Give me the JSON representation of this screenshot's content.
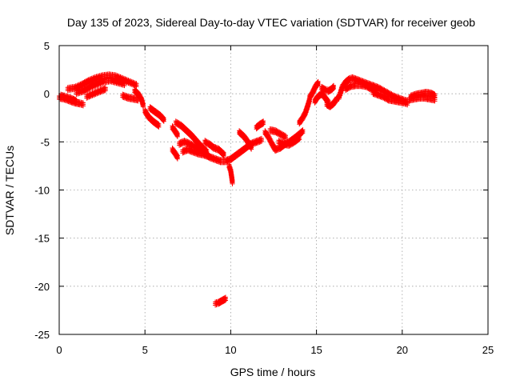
{
  "chart_data": {
    "type": "scatter",
    "title": "Day 135 of 2023, Sidereal Day-to-day VTEC variation (SDTVAR) for receiver geob",
    "xlabel": "GPS time / hours",
    "ylabel": "SDTVAR / TECUs",
    "xlim": [
      0,
      25
    ],
    "ylim": [
      -25,
      5
    ],
    "xticks": [
      0,
      5,
      10,
      15,
      20,
      25
    ],
    "yticks": [
      5,
      0,
      -5,
      -10,
      -15,
      -20,
      -25
    ],
    "grid": true,
    "marker": "plus",
    "color": "#ff0000",
    "series": [
      {
        "name": "SDTVAR",
        "segments": [
          [
            [
              0.0,
              -0.4
            ],
            [
              0.3,
              -0.5
            ],
            [
              0.6,
              -0.7
            ],
            [
              0.9,
              -0.9
            ],
            [
              1.2,
              -1.0
            ],
            [
              1.4,
              -1.1
            ]
          ],
          [
            [
              0.1,
              -0.2
            ],
            [
              0.3,
              -0.3
            ],
            [
              0.5,
              -0.4
            ],
            [
              0.8,
              -0.6
            ],
            [
              1.0,
              -0.8
            ]
          ],
          [
            [
              0.5,
              0.5
            ],
            [
              0.9,
              0.6
            ],
            [
              1.3,
              0.9
            ],
            [
              1.7,
              1.3
            ],
            [
              2.1,
              1.6
            ],
            [
              2.5,
              1.8
            ],
            [
              2.9,
              1.9
            ],
            [
              3.3,
              1.8
            ],
            [
              3.7,
              1.5
            ],
            [
              4.1,
              1.2
            ],
            [
              4.5,
              0.9
            ]
          ],
          [
            [
              1.0,
              0.1
            ],
            [
              1.4,
              0.3
            ],
            [
              1.8,
              0.7
            ],
            [
              2.2,
              1.0
            ],
            [
              2.6,
              1.3
            ],
            [
              3.0,
              1.4
            ],
            [
              3.4,
              1.2
            ],
            [
              3.8,
              1.0
            ]
          ],
          [
            [
              1.6,
              -0.3
            ],
            [
              2.0,
              0.0
            ],
            [
              2.4,
              0.3
            ],
            [
              2.7,
              0.5
            ]
          ],
          [
            [
              3.7,
              -0.2
            ],
            [
              4.0,
              -0.4
            ],
            [
              4.3,
              -0.5
            ],
            [
              4.6,
              -0.6
            ]
          ],
          [
            [
              4.4,
              0.3
            ],
            [
              4.6,
              0.0
            ],
            [
              4.8,
              -0.6
            ],
            [
              4.9,
              -1.2
            ]
          ],
          [
            [
              5.0,
              -1.8
            ],
            [
              5.2,
              -2.4
            ],
            [
              5.5,
              -2.9
            ],
            [
              5.8,
              -3.3
            ]
          ],
          [
            [
              5.3,
              -1.5
            ],
            [
              5.6,
              -1.9
            ],
            [
              5.9,
              -2.3
            ],
            [
              6.1,
              -2.7
            ]
          ],
          [
            [
              6.6,
              -3.5
            ],
            [
              6.8,
              -4.0
            ],
            [
              6.9,
              -4.3
            ]
          ],
          [
            [
              6.8,
              -3.0
            ],
            [
              7.1,
              -3.3
            ],
            [
              7.4,
              -3.8
            ],
            [
              7.7,
              -4.3
            ],
            [
              8.0,
              -4.9
            ],
            [
              8.3,
              -5.5
            ],
            [
              8.6,
              -6.0
            ]
          ],
          [
            [
              6.6,
              -5.8
            ],
            [
              6.8,
              -6.3
            ],
            [
              6.9,
              -6.6
            ]
          ],
          [
            [
              7.0,
              -5.2
            ],
            [
              7.3,
              -5.0
            ],
            [
              7.6,
              -5.2
            ],
            [
              7.9,
              -5.5
            ],
            [
              8.2,
              -5.8
            ],
            [
              8.5,
              -6.2
            ],
            [
              8.8,
              -6.6
            ],
            [
              9.1,
              -6.8
            ],
            [
              9.4,
              -7.0
            ],
            [
              9.7,
              -7.0
            ],
            [
              10.0,
              -6.8
            ],
            [
              10.3,
              -6.4
            ],
            [
              10.6,
              -6.0
            ],
            [
              10.9,
              -5.6
            ],
            [
              11.2,
              -5.2
            ],
            [
              11.5,
              -5.0
            ],
            [
              11.8,
              -4.8
            ]
          ],
          [
            [
              7.2,
              -6.0
            ],
            [
              7.5,
              -5.8
            ],
            [
              7.8,
              -6.0
            ],
            [
              8.1,
              -6.2
            ],
            [
              8.4,
              -6.3
            ],
            [
              8.7,
              -6.5
            ]
          ],
          [
            [
              8.5,
              -5.0
            ],
            [
              8.8,
              -5.3
            ],
            [
              9.0,
              -5.6
            ],
            [
              9.3,
              -5.8
            ],
            [
              9.6,
              -6.3
            ]
          ],
          [
            [
              9.9,
              -7.5
            ],
            [
              10.0,
              -8.0
            ],
            [
              10.05,
              -8.6
            ],
            [
              10.1,
              -9.2
            ]
          ],
          [
            [
              10.5,
              -4.0
            ],
            [
              10.8,
              -4.5
            ],
            [
              11.0,
              -5.0
            ],
            [
              11.2,
              -5.6
            ]
          ],
          [
            [
              11.5,
              -3.5
            ],
            [
              11.7,
              -3.2
            ],
            [
              11.9,
              -3.0
            ]
          ],
          [
            [
              12.0,
              -4.0
            ],
            [
              12.2,
              -4.5
            ],
            [
              12.4,
              -5.2
            ],
            [
              12.6,
              -5.8
            ]
          ],
          [
            [
              12.3,
              -3.8
            ],
            [
              12.6,
              -3.9
            ],
            [
              12.9,
              -4.2
            ],
            [
              13.2,
              -4.5
            ]
          ],
          [
            [
              12.8,
              -5.0
            ],
            [
              13.1,
              -5.2
            ],
            [
              13.4,
              -5.3
            ],
            [
              13.7,
              -5.0
            ],
            [
              14.0,
              -4.6
            ]
          ],
          [
            [
              12.6,
              -5.8
            ],
            [
              12.9,
              -5.6
            ],
            [
              13.2,
              -5.2
            ],
            [
              13.5,
              -4.9
            ],
            [
              13.8,
              -4.5
            ],
            [
              14.0,
              -4.2
            ],
            [
              14.2,
              -3.9
            ]
          ],
          [
            [
              14.0,
              -3.0
            ],
            [
              14.2,
              -2.5
            ],
            [
              14.35,
              -2.0
            ],
            [
              14.5,
              -1.2
            ],
            [
              14.6,
              -0.6
            ]
          ],
          [
            [
              14.6,
              -0.4
            ],
            [
              14.8,
              0.2
            ],
            [
              14.9,
              0.6
            ],
            [
              15.0,
              0.9
            ],
            [
              15.1,
              1.1
            ]
          ],
          [
            [
              14.9,
              -0.8
            ],
            [
              15.0,
              -0.5
            ],
            [
              15.15,
              -0.2
            ],
            [
              15.3,
              0.0
            ],
            [
              15.5,
              -0.4
            ],
            [
              15.7,
              -0.9
            ]
          ],
          [
            [
              15.3,
              0.6
            ],
            [
              15.5,
              0.4
            ],
            [
              15.7,
              0.3
            ],
            [
              15.9,
              0.5
            ],
            [
              16.0,
              0.7
            ]
          ],
          [
            [
              15.6,
              -1.1
            ],
            [
              15.8,
              -1.3
            ],
            [
              16.0,
              -1.0
            ],
            [
              16.2,
              -0.5
            ]
          ],
          [
            [
              16.3,
              -0.4
            ],
            [
              16.4,
              0.1
            ],
            [
              16.5,
              0.7
            ],
            [
              16.7,
              1.2
            ],
            [
              16.9,
              1.5
            ],
            [
              17.1,
              1.6
            ],
            [
              17.4,
              1.4
            ],
            [
              17.7,
              1.2
            ],
            [
              18.0,
              1.0
            ],
            [
              18.3,
              0.8
            ],
            [
              18.6,
              0.6
            ],
            [
              18.9,
              0.3
            ],
            [
              19.2,
              0.0
            ],
            [
              19.5,
              -0.3
            ],
            [
              19.8,
              -0.5
            ],
            [
              20.1,
              -0.7
            ],
            [
              20.3,
              -0.8
            ]
          ],
          [
            [
              16.7,
              0.5
            ],
            [
              17.0,
              0.8
            ],
            [
              17.3,
              0.9
            ],
            [
              17.6,
              0.9
            ],
            [
              17.9,
              0.8
            ],
            [
              18.2,
              0.5
            ],
            [
              18.5,
              0.3
            ]
          ],
          [
            [
              18.3,
              0.1
            ],
            [
              18.6,
              -0.1
            ],
            [
              18.9,
              -0.3
            ],
            [
              19.2,
              -0.6
            ],
            [
              19.5,
              -0.7
            ],
            [
              19.8,
              -0.8
            ],
            [
              20.1,
              -0.9
            ],
            [
              20.3,
              -1.0
            ]
          ],
          [
            [
              20.5,
              -0.3
            ],
            [
              20.8,
              -0.1
            ],
            [
              21.1,
              0.0
            ],
            [
              21.4,
              0.1
            ],
            [
              21.7,
              0.0
            ],
            [
              21.9,
              -0.2
            ]
          ],
          [
            [
              20.4,
              -0.6
            ],
            [
              20.7,
              -0.5
            ],
            [
              21.0,
              -0.4
            ],
            [
              21.3,
              -0.4
            ],
            [
              21.6,
              -0.5
            ],
            [
              21.9,
              -0.6
            ]
          ],
          [
            [
              9.1,
              -21.8
            ],
            [
              9.3,
              -21.7
            ],
            [
              9.5,
              -21.5
            ],
            [
              9.7,
              -21.3
            ]
          ]
        ]
      }
    ]
  }
}
